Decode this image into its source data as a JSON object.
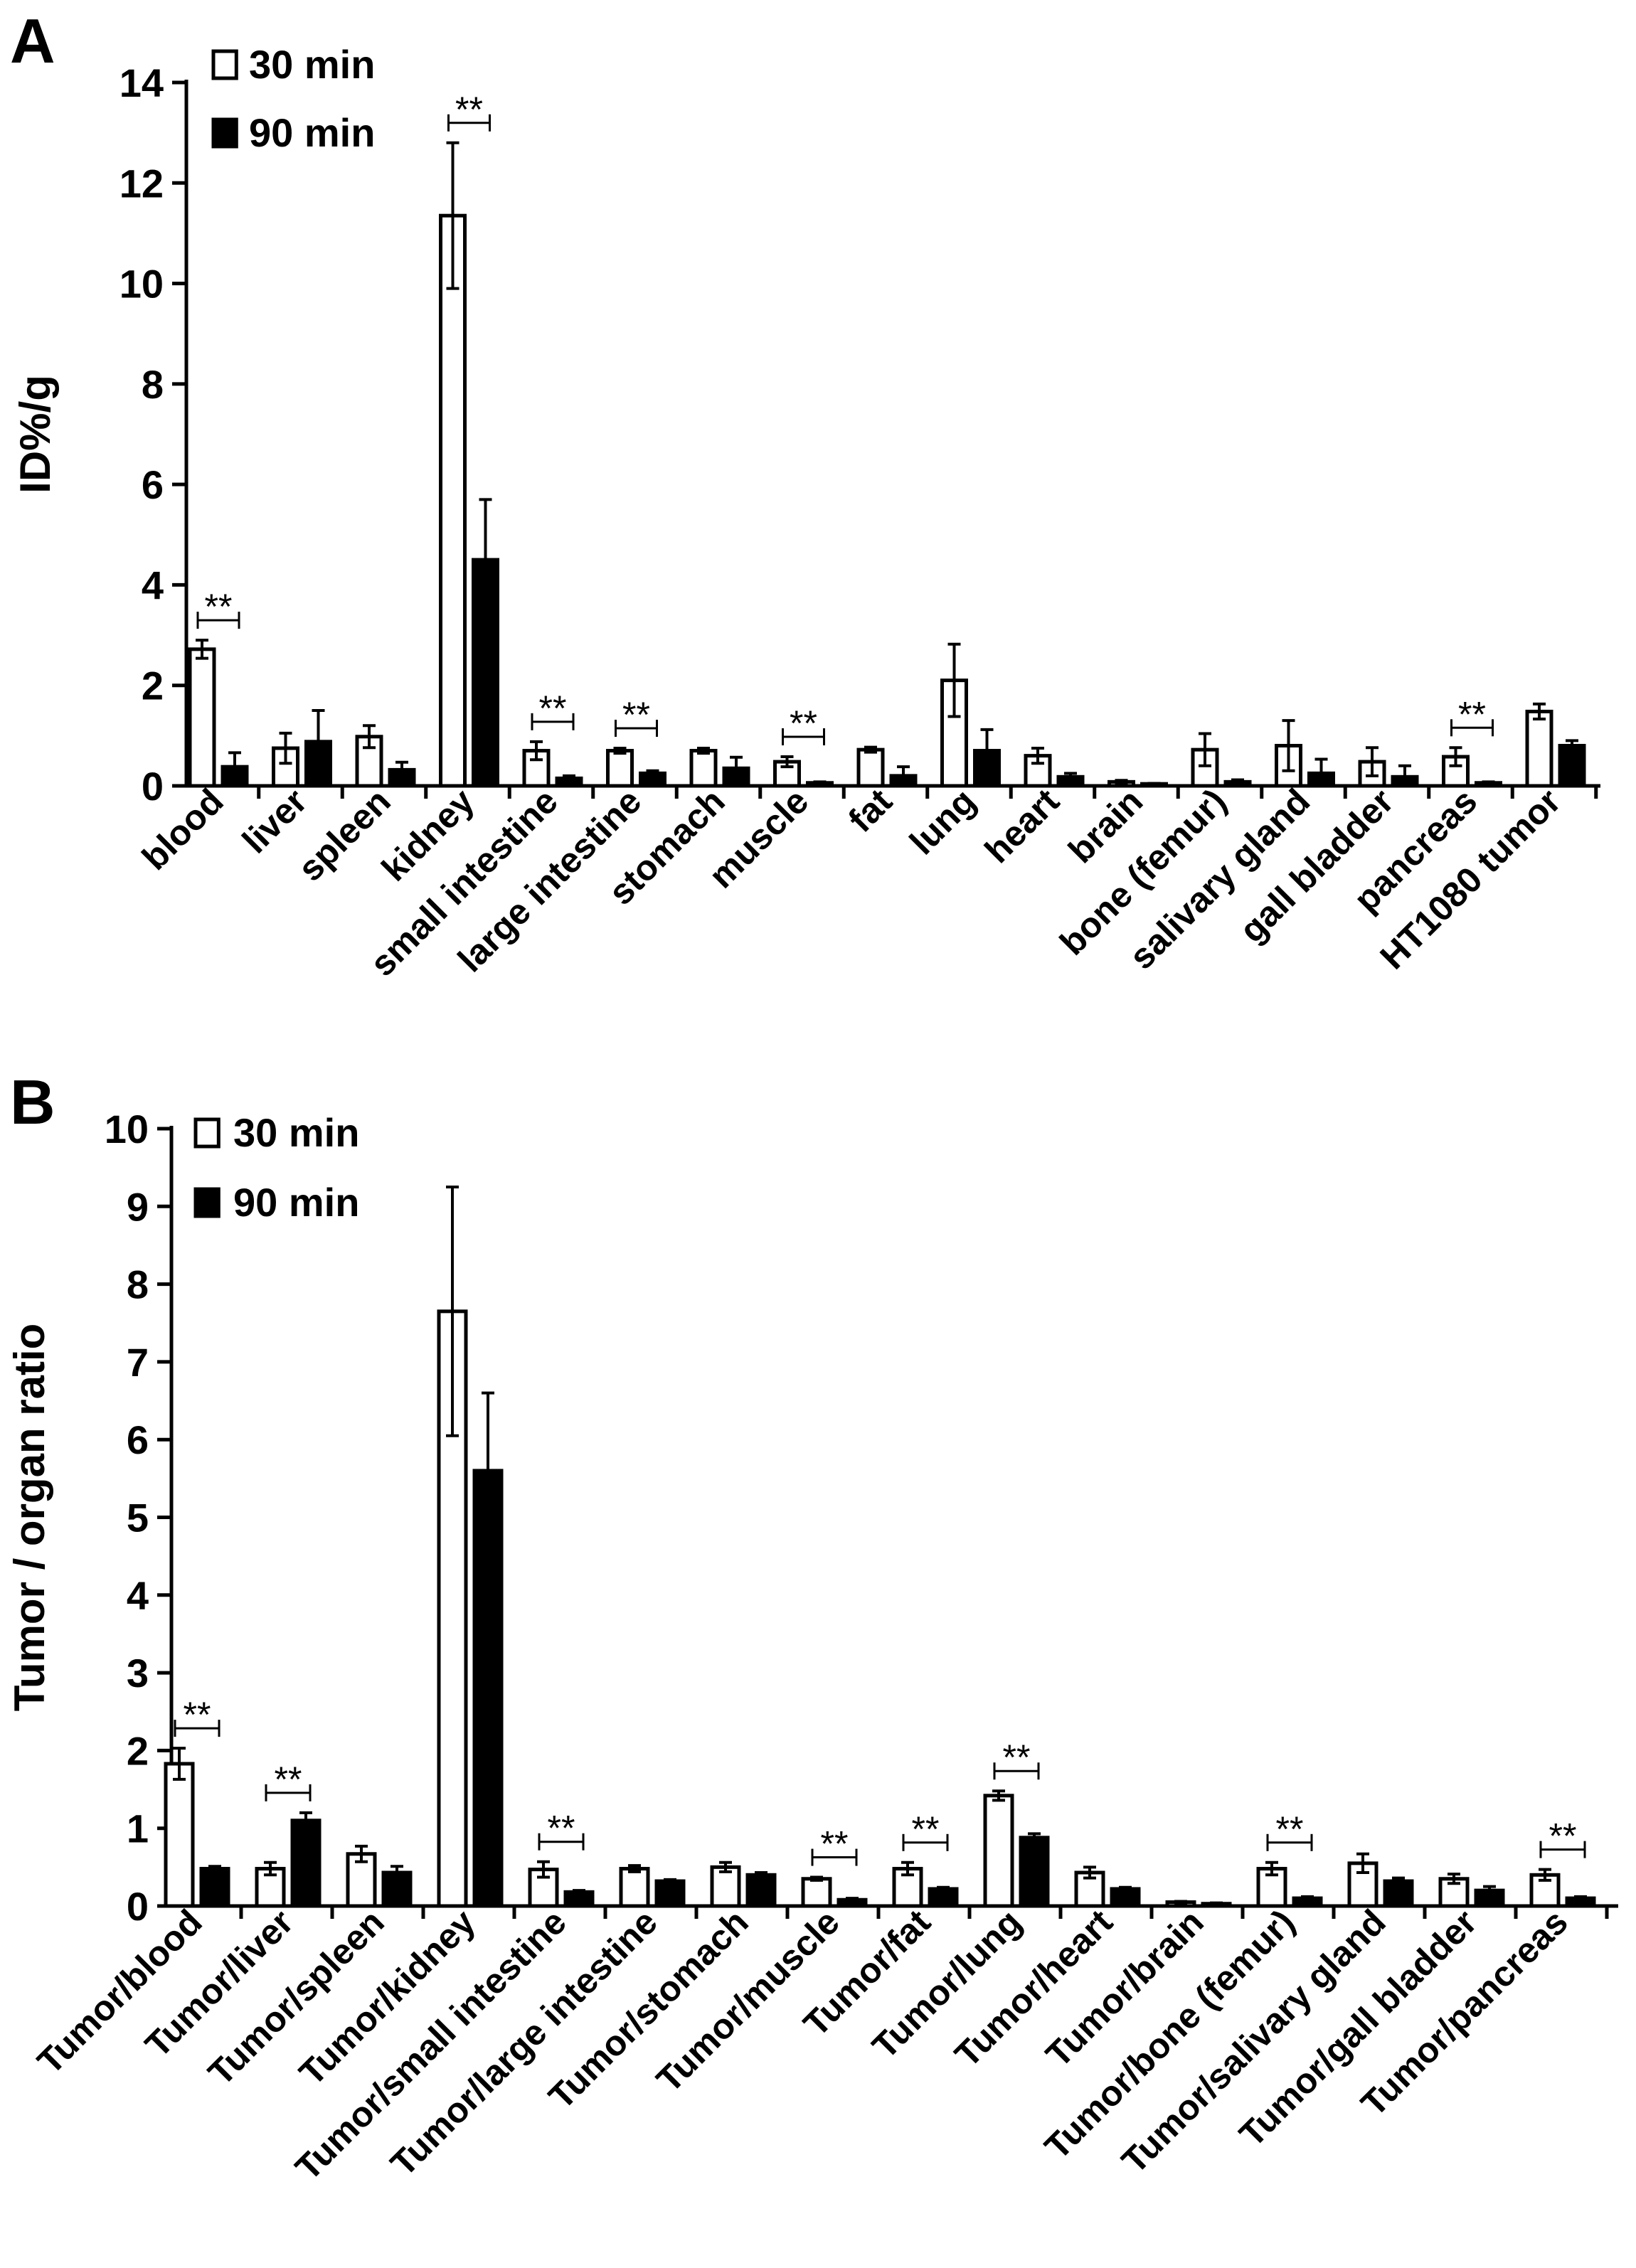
{
  "chart_data": [
    {
      "type": "bar",
      "panel_label": "A",
      "title": "",
      "ylabel": "ID%/g",
      "xlabel": "",
      "ylim": [
        0,
        14
      ],
      "yticks": [
        0,
        2,
        4,
        6,
        8,
        10,
        12,
        14
      ],
      "grid": false,
      "legend_position": "top-left",
      "significance_marker": "**",
      "categories": [
        "blood",
        "liver",
        "spleen",
        "kidney",
        "small intestine",
        "large intestine",
        "stomach",
        "muscle",
        "fat",
        "lung",
        "heart",
        "brain",
        "bone (femur)",
        "salivary gland",
        "gall bladder",
        "pancreas",
        "HT1080 tumor"
      ],
      "series": [
        {
          "name": "30 min",
          "fill": "#ffffff",
          "values": [
            2.72,
            0.75,
            0.98,
            11.35,
            0.7,
            0.7,
            0.7,
            0.48,
            0.72,
            2.1,
            0.6,
            0.08,
            0.72,
            0.8,
            0.48,
            0.58,
            1.48
          ],
          "errors": [
            0.18,
            0.3,
            0.22,
            1.45,
            0.18,
            0.05,
            0.05,
            0.1,
            0.05,
            0.72,
            0.15,
            0.03,
            0.32,
            0.5,
            0.28,
            0.18,
            0.15
          ]
        },
        {
          "name": "90 min",
          "fill": "#000000",
          "values": [
            0.38,
            0.88,
            0.32,
            4.5,
            0.15,
            0.25,
            0.35,
            0.06,
            0.2,
            0.7,
            0.18,
            0.04,
            0.08,
            0.25,
            0.18,
            0.06,
            0.8
          ],
          "errors": [
            0.28,
            0.62,
            0.15,
            1.2,
            0.05,
            0.05,
            0.22,
            0.02,
            0.18,
            0.42,
            0.07,
            0.01,
            0.04,
            0.28,
            0.22,
            0.02,
            0.1
          ]
        }
      ],
      "significant_indices": [
        0,
        3,
        4,
        5,
        7,
        15
      ]
    },
    {
      "type": "bar",
      "panel_label": "B",
      "title": "",
      "ylabel": "Tumor / organ ratio",
      "xlabel": "",
      "ylim": [
        0,
        10
      ],
      "yticks": [
        0,
        1,
        2,
        3,
        4,
        5,
        6,
        7,
        8,
        9,
        10
      ],
      "grid": false,
      "legend_position": "top-left",
      "significance_marker": "**",
      "categories": [
        "Tumor/blood",
        "Tumor/liver",
        "Tumor/spleen",
        "Tumor/kidney",
        "Tumor/small intestine",
        "Tumor/large intestine",
        "Tumor/stomach",
        "Tumor/muscle",
        "Tumor/fat",
        "Tumor/lung",
        "Tumor/heart",
        "Tumor/brain",
        "Tumor/bone (femur)",
        "Tumor/salivary gland",
        "Tumor/gall bladder",
        "Tumor/pancreas"
      ],
      "series": [
        {
          "name": "30 min",
          "fill": "#ffffff",
          "values": [
            1.83,
            0.48,
            0.67,
            7.65,
            0.47,
            0.48,
            0.5,
            0.35,
            0.48,
            1.42,
            0.43,
            0.05,
            0.48,
            0.55,
            0.35,
            0.4
          ],
          "errors": [
            0.2,
            0.08,
            0.1,
            1.6,
            0.1,
            0.04,
            0.06,
            0.02,
            0.08,
            0.06,
            0.07,
            0.01,
            0.08,
            0.12,
            0.06,
            0.07
          ]
        },
        {
          "name": "90 min",
          "fill": "#000000",
          "values": [
            0.48,
            1.1,
            0.43,
            5.6,
            0.18,
            0.32,
            0.4,
            0.08,
            0.22,
            0.88,
            0.22,
            0.03,
            0.1,
            0.32,
            0.2,
            0.1
          ],
          "errors": [
            0.03,
            0.1,
            0.08,
            1.0,
            0.02,
            0.02,
            0.03,
            0.02,
            0.02,
            0.05,
            0.02,
            0.01,
            0.02,
            0.04,
            0.05,
            0.02
          ]
        }
      ],
      "significant_indices": [
        0,
        1,
        4,
        7,
        8,
        9,
        12,
        15
      ]
    }
  ]
}
